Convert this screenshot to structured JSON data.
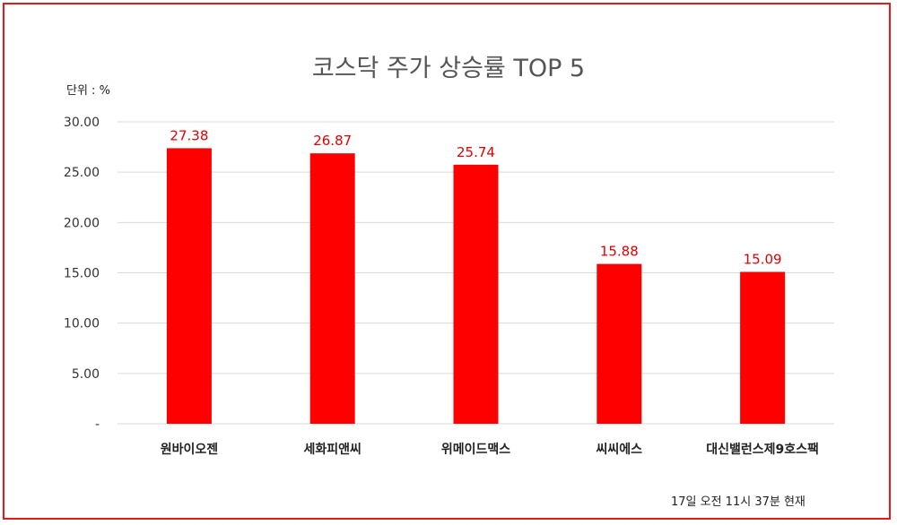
{
  "chart_data": {
    "type": "bar",
    "title": "코스닥 주가 상승률 TOP 5",
    "unit_label": "단위 : %",
    "categories": [
      "원바이오젠",
      "세화피앤씨",
      "위메이드맥스",
      "씨씨에스",
      "대신밸런스제9호스팩"
    ],
    "values": [
      27.38,
      26.87,
      25.74,
      15.88,
      15.09
    ],
    "data_labels": [
      "27.38",
      "26.87",
      "25.74",
      "15.88",
      "15.09"
    ],
    "y_ticks": [
      0,
      5,
      10,
      15,
      20,
      25,
      30
    ],
    "y_tick_labels": [
      "-",
      "5.00",
      "10.00",
      "15.00",
      "20.00",
      "25.00",
      "30.00"
    ],
    "ylim": [
      0,
      30
    ],
    "grid": true,
    "bar_color": "#ff0000",
    "label_color": "#e00000",
    "footnote": "17일  오전 11시 37분 현재"
  }
}
